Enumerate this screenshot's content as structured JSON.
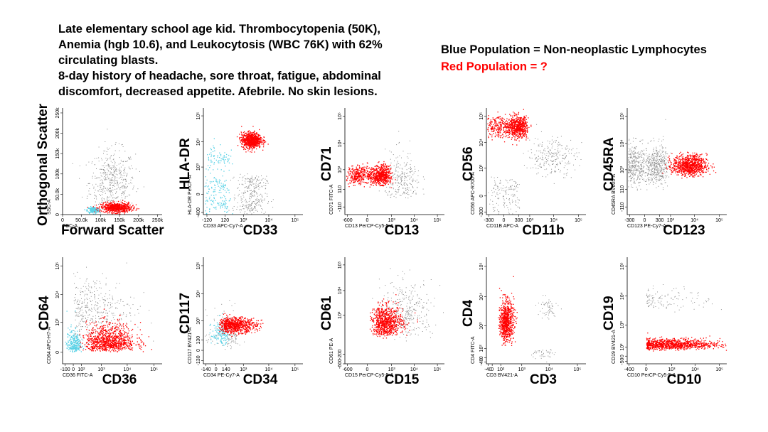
{
  "case": {
    "lines": [
      "Late elementary school age kid. Thrombocytopenia (50K),",
      "Anemia (hgb 10.6), and Leukocytosis (WBC 76K) with 62%",
      "circulating blasts.",
      "8-day history of headache, sore throat, fatigue, abdominal",
      "discomfort, decreased appetite. Afebrile. No skin lesions."
    ]
  },
  "legend": {
    "blue": "Blue Population = Non-neoplastic Lymphocytes",
    "red": "Red Population = ?"
  },
  "colors": {
    "red": "#ff0000",
    "blue": "#5ad2e6",
    "gray": "#8c8c8c"
  },
  "chart_data": [
    {
      "type": "scatter",
      "id": "p1",
      "xlabel": "Forward Scatter",
      "ylabel": "Orthogonal Scatter",
      "small_xlabel": "FSC-A",
      "small_ylabel": "SSC-A",
      "xscale": "linear",
      "yscale": "linear",
      "xlim": [
        0,
        262144
      ],
      "ylim": [
        0,
        262144
      ],
      "xticks": [
        0,
        50000,
        100000,
        150000,
        200000,
        250000
      ],
      "xticklabels": [
        "0",
        "50.0k",
        "100k",
        "150k",
        "200k",
        "250k"
      ],
      "yticks": [
        0,
        50000,
        100000,
        150000,
        200000,
        250000
      ],
      "yticklabels": [
        "0",
        "50.0k",
        "100k",
        "150k",
        "200k",
        "250k"
      ],
      "populations": [
        {
          "color": "gray",
          "count": 500,
          "x": 130000,
          "y": 80000,
          "sx": 30000,
          "sy": 40000
        },
        {
          "color": "blue",
          "count": 200,
          "x": 80000,
          "y": 12000,
          "sx": 8000,
          "sy": 4000
        },
        {
          "color": "red",
          "count": 650,
          "x": 140000,
          "y": 18000,
          "sx": 20000,
          "sy": 6000
        }
      ]
    },
    {
      "type": "scatter",
      "id": "p2",
      "xlabel": "CD33",
      "ylabel": "HLA-DR",
      "small_xlabel": "CD33 APC-Cy7-A",
      "small_ylabel": "HLA-DR PerCP-A",
      "xscale": "biexp",
      "yscale": "biexp",
      "xlim": [
        -200,
        200000
      ],
      "ylim": [
        -500,
        200000
      ],
      "xticks": [
        -120,
        120,
        1000,
        10000,
        100000
      ],
      "xticklabels": [
        "-120",
        "120",
        "10³",
        "10⁴",
        "10⁵"
      ],
      "yticks": [
        -400,
        0,
        1000,
        10000,
        100000
      ],
      "yticklabels": [
        "-400",
        "0",
        "10³",
        "10⁴",
        "10⁵"
      ],
      "populations": [
        {
          "color": "gray",
          "count": 300,
          "x": 2000,
          "y": 0,
          "sx": 0.3,
          "sy": 200
        },
        {
          "color": "blue",
          "count": 150,
          "x": 30,
          "y": 0,
          "sx": 100,
          "sy": 200
        },
        {
          "color": "blue",
          "count": 80,
          "x": 30,
          "y": 2500,
          "sx": 100,
          "sy": 0.3
        },
        {
          "color": "red",
          "count": 800,
          "x": 2000,
          "y": 12000,
          "sx": 0.2,
          "sy": 0.15
        }
      ]
    },
    {
      "type": "scatter",
      "id": "p3",
      "xlabel": "CD13",
      "ylabel": "CD71",
      "small_xlabel": "CD13 PerCP-Cy5-5-A",
      "small_ylabel": "CD71 FITC-A",
      "xscale": "biexp",
      "yscale": "biexp",
      "xlim": [
        -800,
        200000
      ],
      "ylim": [
        -300,
        200000
      ],
      "xticks": [
        -600,
        0,
        1000,
        10000,
        100000
      ],
      "xticklabels": [
        "-600",
        "0",
        "10³",
        "10⁴",
        "10⁵"
      ],
      "yticks": [
        -110,
        110,
        1000,
        10000,
        100000
      ],
      "yticklabels": [
        "-110",
        "110",
        "10³",
        "10⁴",
        "10⁵"
      ],
      "populations": [
        {
          "color": "gray",
          "count": 250,
          "x": 3000,
          "y": 300,
          "sx": 0.4,
          "sy": 0.6
        },
        {
          "color": "red",
          "count": 900,
          "x": 150,
          "y": 600,
          "sx": 300,
          "sy": 0.2
        }
      ]
    },
    {
      "type": "scatter",
      "id": "p4",
      "xlabel": "CD11b",
      "ylabel": "CD56",
      "small_xlabel": "CD11B APC-A",
      "small_ylabel": "CD56 APC-R700-A",
      "xscale": "biexp",
      "yscale": "biexp",
      "xlim": [
        -400,
        200000
      ],
      "ylim": [
        -400,
        200000
      ],
      "xticks": [
        -300,
        0,
        300,
        1000,
        10000,
        100000
      ],
      "xticklabels": [
        "-300",
        "0",
        "300",
        "10³",
        "10⁴",
        "10⁵"
      ],
      "yticks": [
        -300,
        0,
        1000,
        10000,
        100000
      ],
      "yticklabels": [
        "-300",
        "0",
        "10³",
        "10⁴",
        "10⁵"
      ],
      "populations": [
        {
          "color": "gray",
          "count": 250,
          "x": 8000,
          "y": 3000,
          "sx": 0.5,
          "sy": 0.4
        },
        {
          "color": "gray",
          "count": 150,
          "x": 0,
          "y": 0,
          "sx": 150,
          "sy": 150
        },
        {
          "color": "red",
          "count": 850,
          "x": 200,
          "y": 40000,
          "sx": 250,
          "sy": 0.2
        }
      ]
    },
    {
      "type": "scatter",
      "id": "p5",
      "xlabel": "CD123",
      "ylabel": "CD45RA",
      "small_xlabel": "CD123 PE-Cy7-A",
      "small_ylabel": "CD45RA BV605-A",
      "xscale": "biexp",
      "yscale": "biexp",
      "xlim": [
        -400,
        200000
      ],
      "ylim": [
        -300,
        200000
      ],
      "xticks": [
        -300,
        0,
        300,
        1000,
        10000,
        100000
      ],
      "xticklabels": [
        "-300",
        "0",
        "300",
        "10³",
        "10⁴",
        "10⁵"
      ],
      "yticks": [
        -110,
        110,
        1000,
        10000,
        100000
      ],
      "yticklabels": [
        "-110",
        "110",
        "10³",
        "10⁴",
        "10⁵"
      ],
      "populations": [
        {
          "color": "gray",
          "count": 900,
          "x": 0,
          "y": 1500,
          "sx": 300,
          "sy": 0.4
        },
        {
          "color": "red",
          "count": 900,
          "x": 6000,
          "y": 1500,
          "sx": 0.35,
          "sy": 0.2
        }
      ]
    },
    {
      "type": "scatter",
      "id": "p6",
      "xlabel": "CD36",
      "ylabel": "CD64",
      "small_xlabel": "CD36 FITC-A",
      "small_ylabel": "CD64 APC-H7-A",
      "xscale": "biexp",
      "yscale": "biexp",
      "xlim": [
        -150,
        200000
      ],
      "ylim": [
        -150,
        200000
      ],
      "xticks": [
        -100,
        0,
        100,
        1000,
        10000,
        100000
      ],
      "xticklabels": [
        "-100",
        "0",
        "10²",
        "10³",
        "10⁴",
        "10⁵"
      ],
      "yticks": [
        0,
        1000,
        10000,
        100000
      ],
      "yticklabels": [
        "0",
        "10³",
        "10⁴",
        "10⁵"
      ],
      "populations": [
        {
          "color": "gray",
          "count": 400,
          "x": 500,
          "y": 3000,
          "sx": 0.8,
          "sy": 0.6
        },
        {
          "color": "blue",
          "count": 250,
          "x": 0,
          "y": 100,
          "sx": 40,
          "sy": 0.4
        },
        {
          "color": "red",
          "count": 950,
          "x": 2000,
          "y": 150,
          "sx": 0.5,
          "sy": 0.4
        }
      ]
    },
    {
      "type": "scatter",
      "id": "p7",
      "xlabel": "CD34",
      "ylabel": "CD117",
      "small_xlabel": "CD34 PE-Cy7-A",
      "small_ylabel": "CD117 BV421-A",
      "xscale": "biexp",
      "yscale": "biexp",
      "xlim": [
        -200,
        200000
      ],
      "ylim": [
        -200,
        200000
      ],
      "xticks": [
        -140,
        0,
        140,
        1000,
        10000,
        100000
      ],
      "xticklabels": [
        "-140",
        "0",
        "140",
        "10³",
        "10⁴",
        "10⁵"
      ],
      "yticks": [
        -130,
        0,
        130,
        1000,
        10000,
        100000
      ],
      "yticklabels": [
        "-130",
        "0",
        "130",
        "10³",
        "10⁴",
        "10⁵"
      ],
      "populations": [
        {
          "color": "gray",
          "count": 150,
          "x": 200,
          "y": 300,
          "sx": 200,
          "sy": 0.5
        },
        {
          "color": "blue",
          "count": 150,
          "x": 60,
          "y": 300,
          "sx": 60,
          "sy": 0.3
        },
        {
          "color": "red",
          "count": 800,
          "x": 400,
          "y": 700,
          "sx": 0.45,
          "sy": 0.15
        }
      ]
    },
    {
      "type": "scatter",
      "id": "p8",
      "xlabel": "CD15",
      "ylabel": "CD61",
      "small_xlabel": "CD15 PerCP-Cy5-5-A",
      "small_ylabel": "CD61 PE-A",
      "xscale": "biexp",
      "yscale": "biexp",
      "xlim": [
        -800,
        200000
      ],
      "ylim": [
        -600,
        200000
      ],
      "xticks": [
        -600,
        0,
        1000,
        10000,
        100000
      ],
      "xticklabels": [
        "-600",
        "0",
        "10³",
        "10⁴",
        "10⁵"
      ],
      "yticks": [
        -600,
        -200,
        1000,
        10000,
        100000
      ],
      "yticklabels": [
        "-600",
        "-200",
        "10³",
        "10⁴",
        "10⁵"
      ],
      "populations": [
        {
          "color": "gray",
          "count": 350,
          "x": 4000,
          "y": 1500,
          "sx": 0.6,
          "sy": 0.6
        },
        {
          "color": "red",
          "count": 800,
          "x": 500,
          "y": 500,
          "sx": 0.4,
          "sy": 0.35
        }
      ]
    },
    {
      "type": "scatter",
      "id": "p9",
      "xlabel": "CD3",
      "ylabel": "CD4",
      "small_xlabel": "CD3 BV421-A",
      "small_ylabel": "CD4 FITC-A",
      "xscale": "biexp",
      "yscale": "biexp",
      "xlim": [
        -60,
        200000
      ],
      "ylim": [
        -60,
        200000
      ],
      "xticks": [
        -40,
        0,
        100,
        1000,
        10000,
        100000
      ],
      "xticklabels": [
        "-40",
        "0",
        "10²",
        "10³",
        "10⁴",
        "10⁵"
      ],
      "yticks": [
        -40,
        0,
        100,
        1000,
        10000,
        100000
      ],
      "yticklabels": [
        "-40",
        "0",
        "10²",
        "10³",
        "10⁴",
        "10⁵"
      ],
      "populations": [
        {
          "color": "gray",
          "count": 60,
          "x": 8000,
          "y": 4000,
          "sx": 0.2,
          "sy": 0.2
        },
        {
          "color": "gray",
          "count": 40,
          "x": 6000,
          "y": 40,
          "sx": 0.2,
          "sy": 30
        },
        {
          "color": "red",
          "count": 750,
          "x": 200,
          "y": 1500,
          "sx": 0.18,
          "sy": 0.35
        }
      ]
    },
    {
      "type": "scatter",
      "id": "p10",
      "xlabel": "CD10",
      "ylabel": "CD19",
      "small_xlabel": "CD10 PerCP-Cy5-5-A",
      "small_ylabel": "CD19 BV421-A",
      "xscale": "biexp",
      "yscale": "biexp",
      "xlim": [
        -500,
        200000
      ],
      "ylim": [
        -80,
        200000
      ],
      "xticks": [
        -400,
        0,
        1000,
        10000,
        100000
      ],
      "xticklabels": [
        "-400",
        "0",
        "10³",
        "10⁴",
        "10⁵"
      ],
      "yticks": [
        -50,
        0,
        100,
        1000,
        10000,
        100000
      ],
      "yticklabels": [
        "-50",
        "0",
        "10²",
        "10³",
        "10⁴",
        "10⁵"
      ],
      "populations": [
        {
          "color": "gray",
          "count": 120,
          "x": 500,
          "y": 8000,
          "sx": 1.0,
          "sy": 0.2
        },
        {
          "color": "red",
          "count": 950,
          "x": 1000,
          "y": 150,
          "sx": 1.0,
          "sy": 0.15
        }
      ]
    }
  ]
}
